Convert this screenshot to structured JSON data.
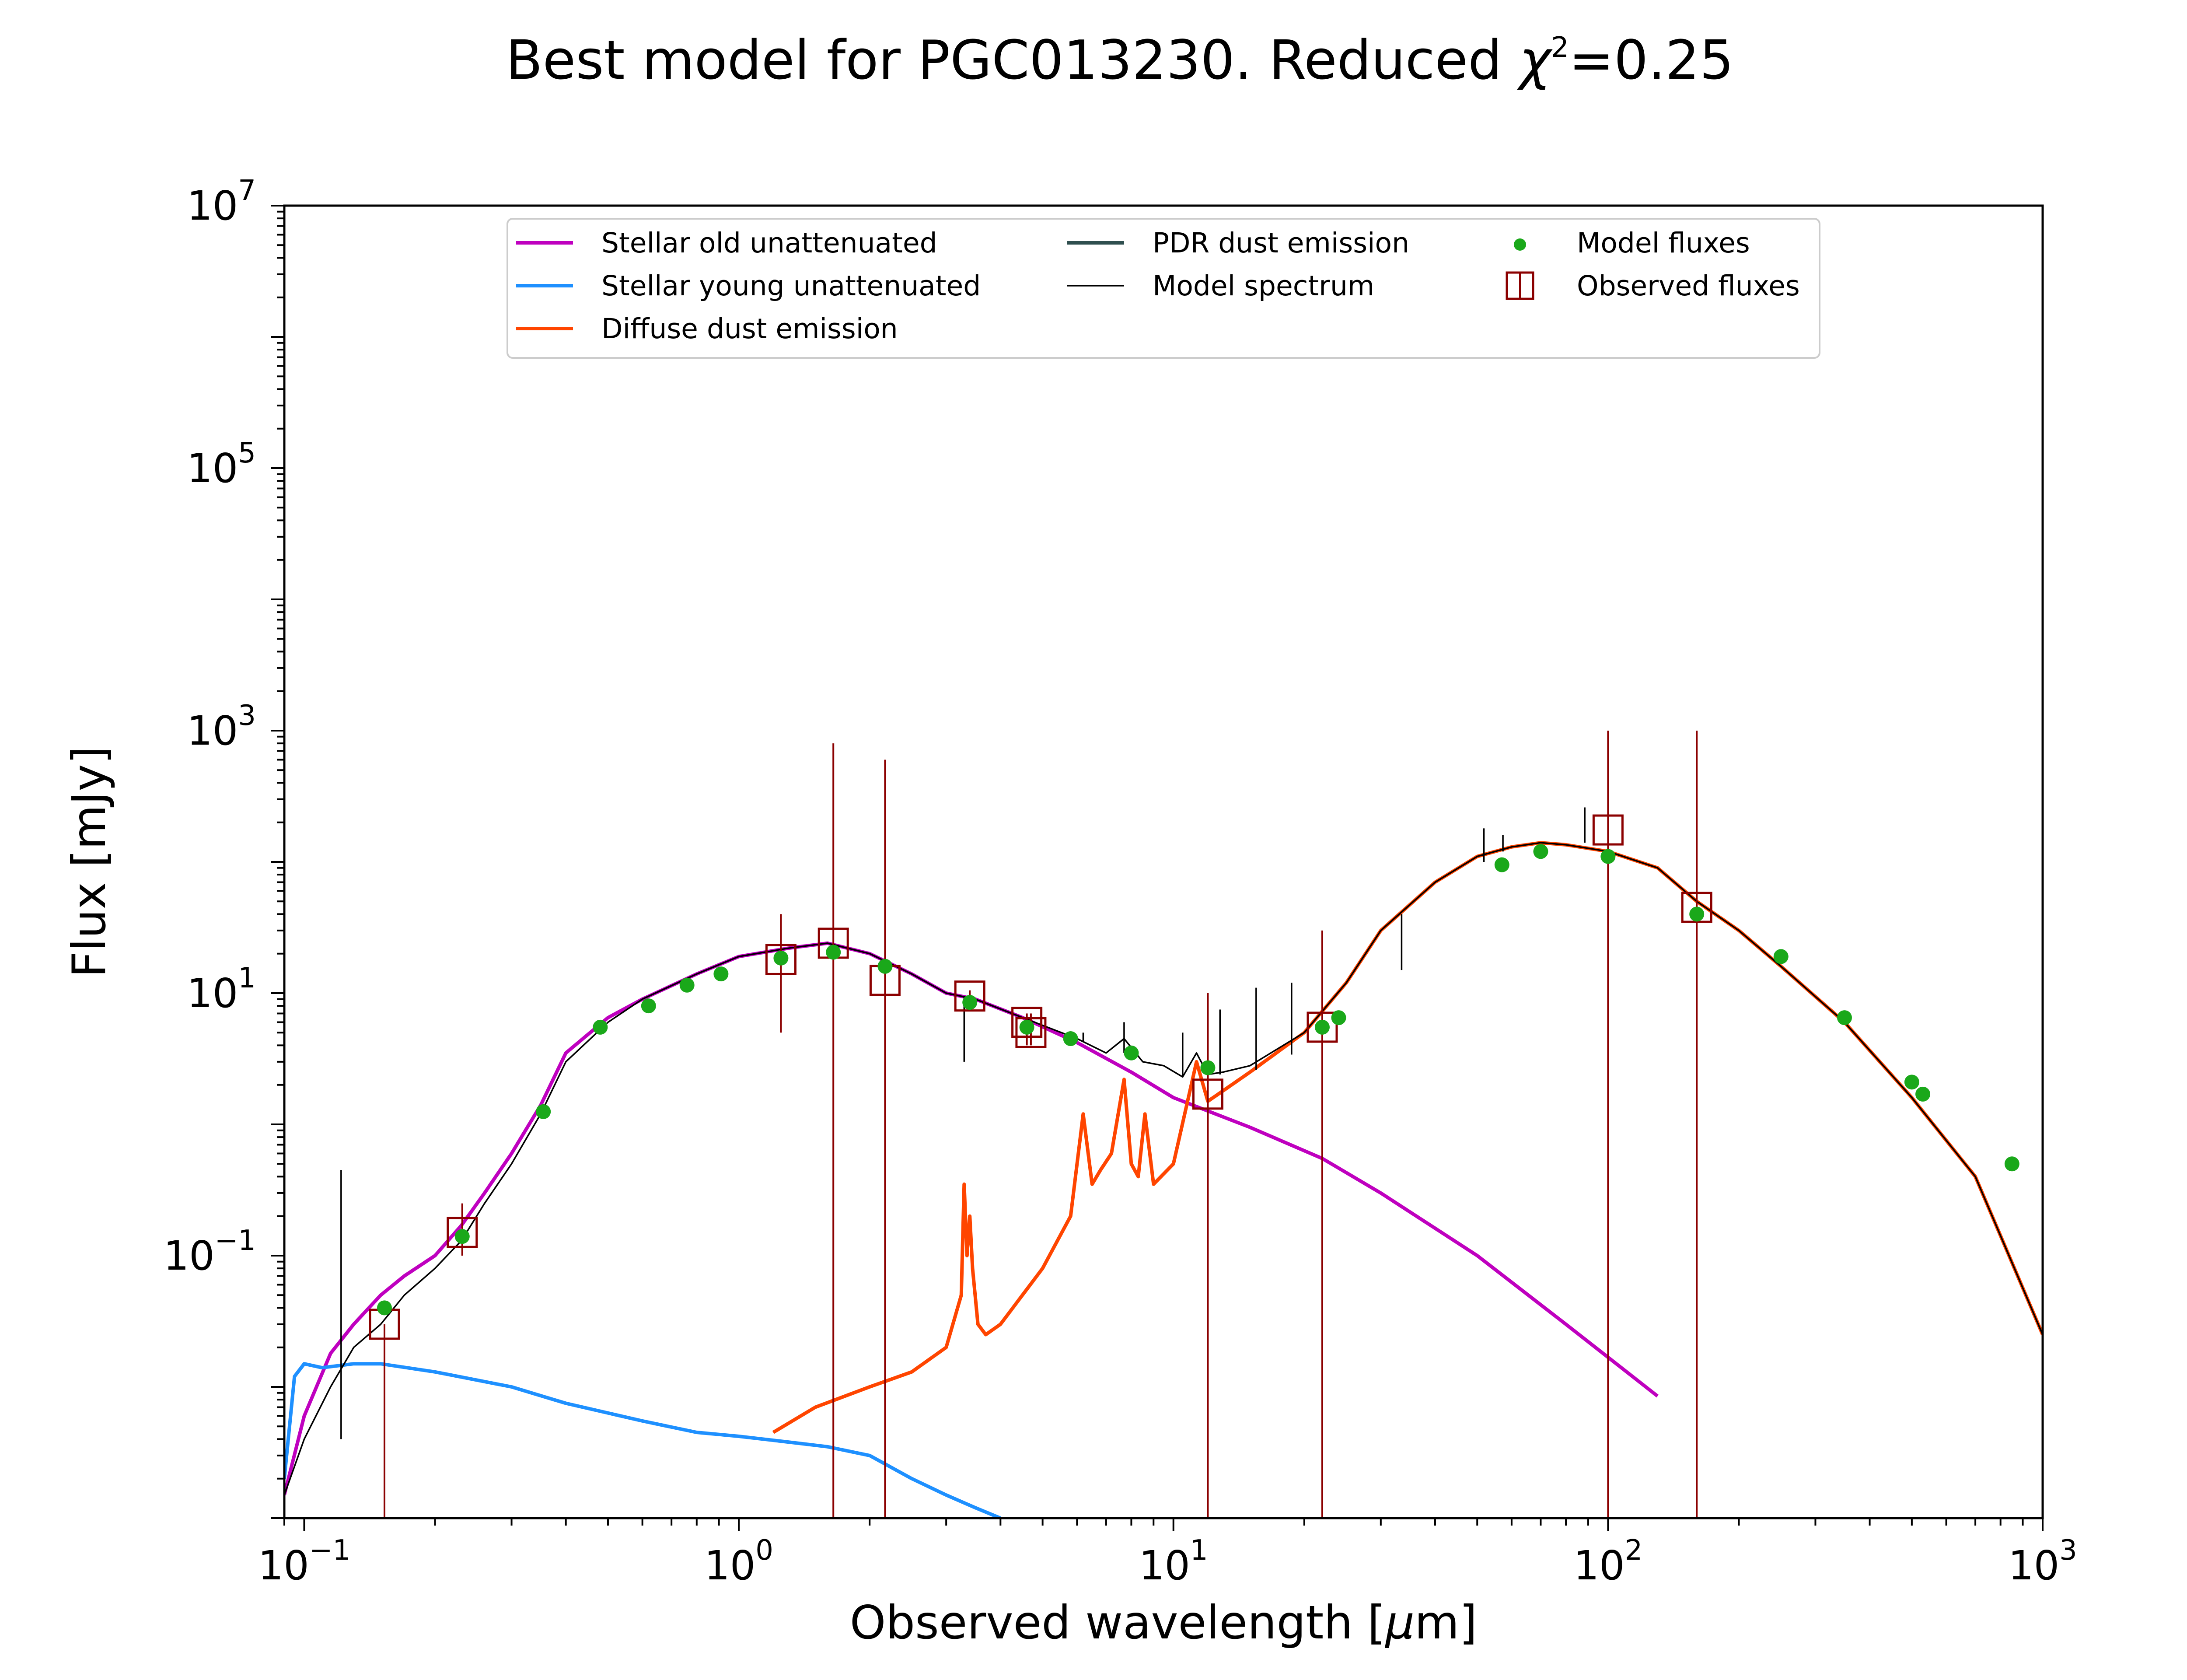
{
  "chart_data": {
    "type": "line",
    "title": "Best model for PGC013230. Reduced χ²=0.25",
    "title_parts": {
      "main": "Best model for PGC013230. Reduced ",
      "chi": "χ",
      "chi_exp": "2",
      "value": "=0.25"
    },
    "xlabel": "Observed wavelength [μm]",
    "xlabel_parts": {
      "text": "Observed wavelength [",
      "mu": "μ",
      "unit": "m]"
    },
    "ylabel": "Flux [mJy]",
    "x_scale": "log",
    "y_scale": "log",
    "xlim": [
      0.09,
      1000
    ],
    "ylim": [
      0.001,
      10000000
    ],
    "x_ticks": [
      {
        "value": 0.1,
        "base": "10",
        "exp": "−1"
      },
      {
        "value": 1,
        "base": "10",
        "exp": "0"
      },
      {
        "value": 10,
        "base": "10",
        "exp": "1"
      },
      {
        "value": 100,
        "base": "10",
        "exp": "2"
      },
      {
        "value": 1000,
        "base": "10",
        "exp": "3"
      }
    ],
    "y_ticks": [
      {
        "value": 0.1,
        "base": "10",
        "exp": "−1"
      },
      {
        "value": 10,
        "base": "10",
        "exp": "1"
      },
      {
        "value": 1000,
        "base": "10",
        "exp": "3"
      },
      {
        "value": 100000,
        "base": "10",
        "exp": "5"
      },
      {
        "value": 10000000,
        "base": "10",
        "exp": "7"
      }
    ],
    "grid": false,
    "legend_position": "top-center",
    "legend": [
      {
        "label": "Stellar old unattenuated",
        "marker": "line",
        "color": "#bf00bf"
      },
      {
        "label": "Stellar young unattenuated",
        "marker": "line",
        "color": "#1e90ff"
      },
      {
        "label": "Diffuse dust emission",
        "marker": "line",
        "color": "#ff4500"
      },
      {
        "label": "PDR dust emission",
        "marker": "line",
        "color": "#2f4f4f"
      },
      {
        "label": "Model spectrum",
        "marker": "thin-line",
        "color": "#000000"
      },
      {
        "label": "Model fluxes",
        "marker": "dot",
        "color": "#1aa81a"
      },
      {
        "label": "Observed fluxes",
        "marker": "square",
        "color": "#8b0000"
      }
    ],
    "series": [
      {
        "name": "Stellar old unattenuated",
        "color": "#bf00bf",
        "kind": "line",
        "x": [
          0.09,
          0.1,
          0.115,
          0.13,
          0.15,
          0.17,
          0.2,
          0.23,
          0.26,
          0.3,
          0.35,
          0.4,
          0.5,
          0.6,
          0.8,
          1.0,
          1.3,
          1.6,
          2.0,
          2.5,
          3.0,
          3.5,
          4.5,
          6,
          8,
          10,
          15,
          22,
          30,
          50,
          80,
          130
        ],
        "y": [
          0.0015,
          0.006,
          0.018,
          0.03,
          0.05,
          0.07,
          0.1,
          0.17,
          0.3,
          0.6,
          1.4,
          3.5,
          6.5,
          9,
          14,
          19,
          22,
          24,
          20,
          14,
          10,
          9,
          6.5,
          4.2,
          2.5,
          1.6,
          0.95,
          0.55,
          0.3,
          0.1,
          0.03,
          0.0085
        ]
      },
      {
        "name": "Stellar young unattenuated",
        "color": "#1e90ff",
        "kind": "line",
        "x": [
          0.09,
          0.095,
          0.1,
          0.11,
          0.13,
          0.15,
          0.2,
          0.3,
          0.4,
          0.6,
          0.8,
          1.0,
          1.3,
          1.6,
          2.0,
          2.5,
          3.0,
          3.5,
          4.0
        ],
        "y": [
          0.002,
          0.012,
          0.015,
          0.014,
          0.015,
          0.015,
          0.013,
          0.01,
          0.0075,
          0.0055,
          0.0045,
          0.0042,
          0.0038,
          0.0035,
          0.003,
          0.002,
          0.0015,
          0.0012,
          0.001
        ]
      },
      {
        "name": "Diffuse dust emission",
        "color": "#ff4500",
        "kind": "line",
        "x": [
          1.2,
          1.5,
          2.0,
          2.5,
          3.0,
          3.25,
          3.3,
          3.35,
          3.4,
          3.45,
          3.55,
          3.7,
          4.0,
          5.0,
          5.8,
          6.2,
          6.5,
          6.8,
          7.2,
          7.7,
          8.0,
          8.3,
          8.6,
          9.0,
          10.0,
          11.3,
          12.0,
          13.0,
          15.0,
          20.0,
          25.0,
          30.0,
          40.0,
          50.0,
          60.0,
          70.0,
          80.0,
          100.0,
          130.0,
          160.0,
          200.0,
          250.0,
          350.0,
          500.0,
          700.0,
          1000.0
        ],
        "y": [
          0.0045,
          0.007,
          0.01,
          0.013,
          0.02,
          0.05,
          0.35,
          0.1,
          0.2,
          0.08,
          0.03,
          0.025,
          0.03,
          0.08,
          0.2,
          1.2,
          0.35,
          0.45,
          0.6,
          2.2,
          0.5,
          0.4,
          1.2,
          0.35,
          0.5,
          3.0,
          1.5,
          1.8,
          2.5,
          5.0,
          12.0,
          30.0,
          70.0,
          110.0,
          130.0,
          140.0,
          135.0,
          120.0,
          90.0,
          50.0,
          30.0,
          16.0,
          6.0,
          1.6,
          0.4,
          0.025
        ]
      },
      {
        "name": "Model spectrum",
        "color": "#000000",
        "kind": "thin-line",
        "x": [
          0.09,
          0.1,
          0.115,
          0.13,
          0.15,
          0.17,
          0.2,
          0.23,
          0.26,
          0.3,
          0.35,
          0.4,
          0.5,
          0.6,
          0.8,
          1.0,
          1.3,
          1.6,
          2.0,
          2.5,
          3.0,
          3.5,
          4.5,
          6,
          7,
          7.7,
          8.5,
          9.5,
          10.5,
          11.3,
          12,
          13,
          15,
          20,
          25,
          30,
          40,
          50,
          60,
          70,
          80,
          100,
          130,
          160,
          200,
          250,
          350,
          500,
          700,
          1000
        ],
        "y": [
          0.0015,
          0.004,
          0.01,
          0.02,
          0.03,
          0.05,
          0.08,
          0.13,
          0.25,
          0.5,
          1.2,
          3.0,
          6.0,
          9.0,
          14.0,
          19.0,
          22.0,
          24.0,
          20.0,
          14.0,
          10.0,
          9.0,
          6.5,
          4.5,
          3.5,
          4.5,
          3.0,
          2.8,
          2.3,
          3.5,
          2.4,
          2.5,
          2.8,
          5.0,
          12.0,
          30.0,
          70.0,
          110.0,
          130.0,
          140.0,
          135.0,
          120.0,
          90.0,
          50.0,
          30.0,
          16.0,
          6.0,
          1.6,
          0.4,
          0.025
        ]
      },
      {
        "name": "Model spectrum lines",
        "color": "#000000",
        "kind": "vlines",
        "x": [
          0.1216,
          3.3,
          6.2,
          7.7,
          10.5,
          12.8,
          15.5,
          18.7,
          33.5,
          51.8,
          57.3,
          88.4
        ],
        "y_low": [
          0.004,
          3.0,
          4.3,
          3.5,
          2.3,
          2.4,
          2.6,
          3.4,
          15.0,
          100.0,
          120.0,
          140.0
        ],
        "y_high": [
          0.45,
          9.5,
          5.0,
          6.0,
          5.0,
          7.5,
          11.0,
          12.0,
          40.0,
          180.0,
          160.0,
          260.0
        ]
      },
      {
        "name": "Model fluxes",
        "color": "#1aa81a",
        "kind": "scatter",
        "x": [
          0.153,
          0.231,
          0.355,
          0.48,
          0.62,
          0.76,
          0.91,
          1.25,
          1.65,
          2.17,
          3.4,
          4.6,
          5.8,
          8.0,
          12.0,
          22.0,
          24.0,
          57.0,
          70.0,
          100.0,
          160.0,
          250.0,
          350.0,
          500.0,
          530.0,
          850.0
        ],
        "y": [
          0.04,
          0.14,
          1.25,
          5.5,
          8.0,
          11.5,
          14.0,
          18.5,
          20.5,
          16.0,
          8.5,
          5.5,
          4.5,
          3.5,
          2.7,
          5.5,
          6.5,
          95.0,
          120.0,
          110.0,
          40.0,
          19.0,
          6.5,
          2.1,
          1.7,
          0.5
        ]
      },
      {
        "name": "Observed fluxes",
        "color": "#8b0000",
        "kind": "square-errorbar",
        "x": [
          0.153,
          0.231,
          1.25,
          1.65,
          2.17,
          3.4,
          4.6,
          4.7,
          12.0,
          22.0,
          100.0,
          160.0
        ],
        "y": [
          0.03,
          0.15,
          18.0,
          24.0,
          12.5,
          9.5,
          6.0,
          5.0,
          1.7,
          5.5,
          175.0,
          45.0
        ],
        "err_low": [
          0.001,
          0.1,
          5.0,
          0.001,
          0.001,
          8.5,
          4.0,
          4.0,
          0.001,
          0.001,
          0.001,
          0.001
        ],
        "err_high": [
          0.03,
          0.25,
          40.0,
          800.0,
          600.0,
          10.5,
          7.0,
          7.0,
          10.0,
          30.0,
          1000.0,
          1000.0
        ]
      }
    ]
  }
}
